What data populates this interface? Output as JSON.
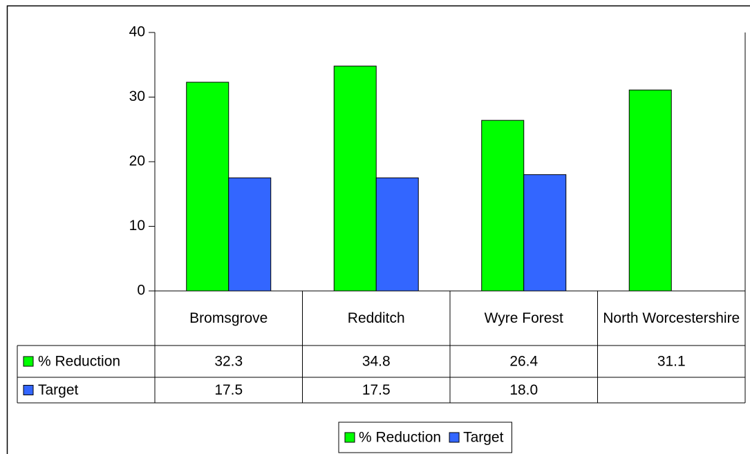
{
  "chart_data": {
    "type": "bar",
    "categories": [
      "Bromsgrove",
      "Redditch",
      "Wyre Forest",
      "North Worcestershire"
    ],
    "series": [
      {
        "name": "% Reduction",
        "color": "#00ff00",
        "values": [
          32.3,
          34.8,
          26.4,
          31.1
        ]
      },
      {
        "name": "Target",
        "color": "#3366ff",
        "values": [
          17.5,
          17.5,
          18.0,
          null
        ],
        "value_labels": [
          "17.5",
          "17.5",
          "18.0",
          null
        ]
      }
    ],
    "ylim": [
      0,
      40
    ],
    "yticks": [
      0,
      10,
      20,
      30,
      40
    ],
    "grid": false,
    "legend": "bottom"
  }
}
